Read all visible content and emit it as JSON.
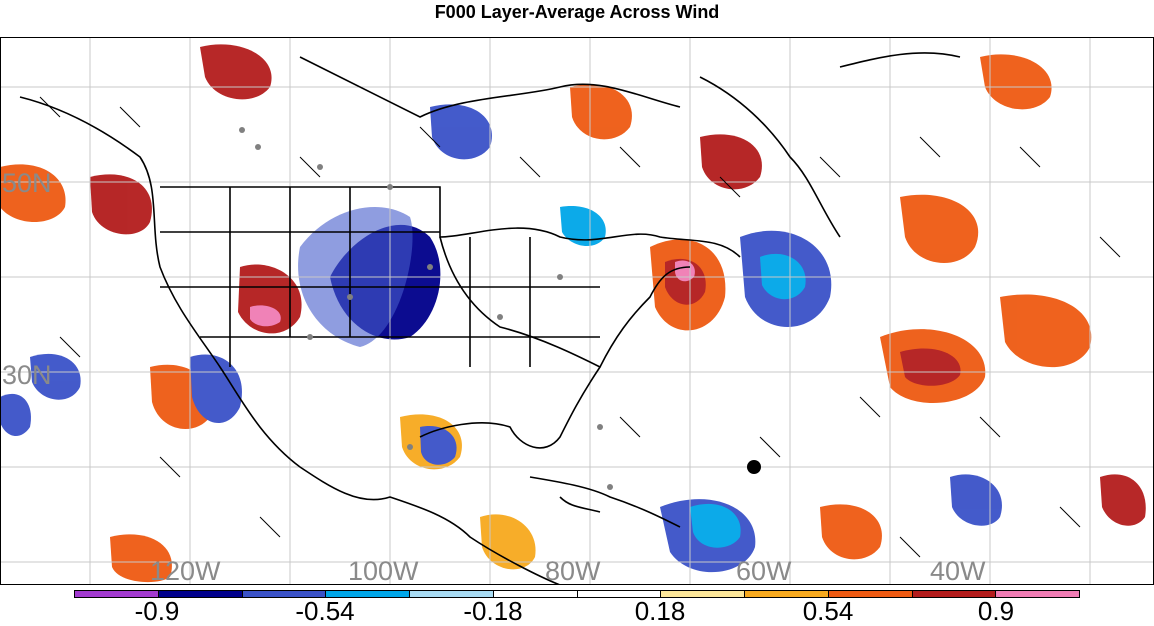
{
  "title": "F000 Layer-Average Across Wind",
  "latitude_labels": [
    "50N",
    "30N"
  ],
  "longitude_labels": [
    "120W",
    "100W",
    "80W",
    "60W",
    "40W"
  ],
  "colorbar": {
    "colors": [
      "#a23ad0",
      "#00008b",
      "#3a52c8",
      "#00a6e8",
      "#a8dcf4",
      "#ffffff",
      "#ffffff",
      "#fde79a",
      "#f7a91e",
      "#ee5a12",
      "#b31c1c",
      "#f07cb4"
    ],
    "tick_labels": [
      "-0.9",
      "-0.54",
      "-0.18",
      "0.18",
      "0.54",
      "0.9"
    ]
  }
}
